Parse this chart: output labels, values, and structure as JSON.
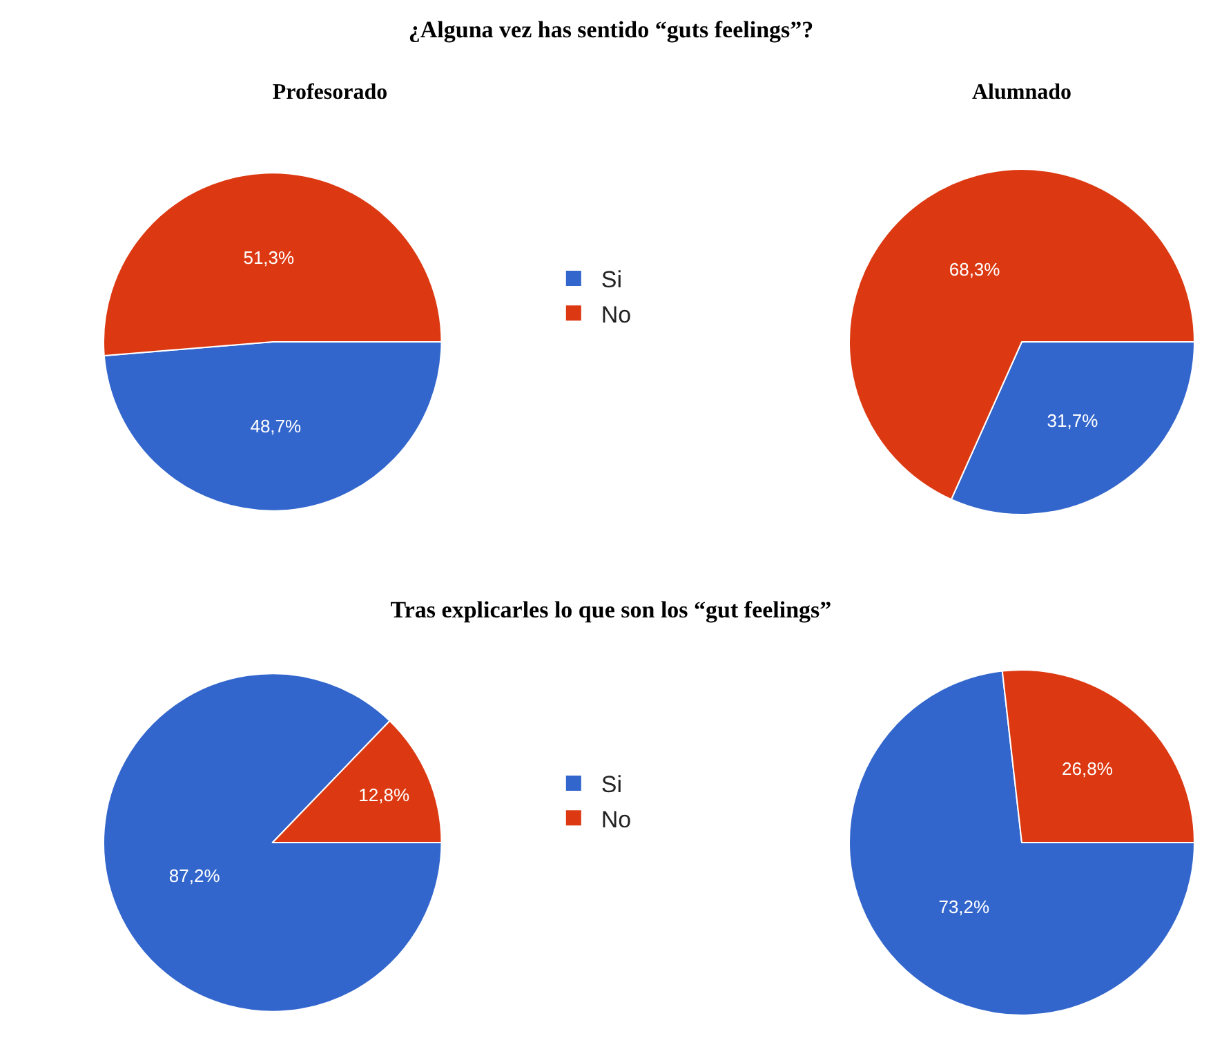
{
  "chart_data": [
    {
      "type": "pie",
      "title": "Profesorado",
      "annotations": [
        "¿Alguna vez has sentido “guts feelings”?"
      ],
      "categories": [
        "Si",
        "No"
      ],
      "values": [
        48.7,
        51.3
      ],
      "colors": [
        "#3366cc",
        "#dc3912"
      ],
      "value_labels": [
        "48,7%",
        "51,3%"
      ],
      "legend": "right"
    },
    {
      "type": "pie",
      "title": "Alumnado",
      "categories": [
        null,
        null
      ],
      "values": [
        31.7,
        68.3
      ],
      "colors": [
        "#3366cc",
        "#dc3912"
      ],
      "value_labels": [
        "31,7%",
        "68,3%"
      ]
    },
    {
      "type": "pie",
      "annotations": [
        "Tras explicarles lo que son los “gut feelings”"
      ],
      "categories": [
        "Si",
        "No"
      ],
      "values": [
        87.2,
        12.8
      ],
      "colors": [
        "#3366cc",
        "#dc3912"
      ],
      "value_labels": [
        "87,2%",
        "12,8%"
      ],
      "legend": "right"
    },
    {
      "type": "pie",
      "categories": [
        null,
        null
      ],
      "values": [
        73.2,
        26.8
      ],
      "colors": [
        "#3366cc",
        "#dc3912"
      ],
      "value_labels": [
        "73,2%",
        "26,8%"
      ]
    }
  ]
}
